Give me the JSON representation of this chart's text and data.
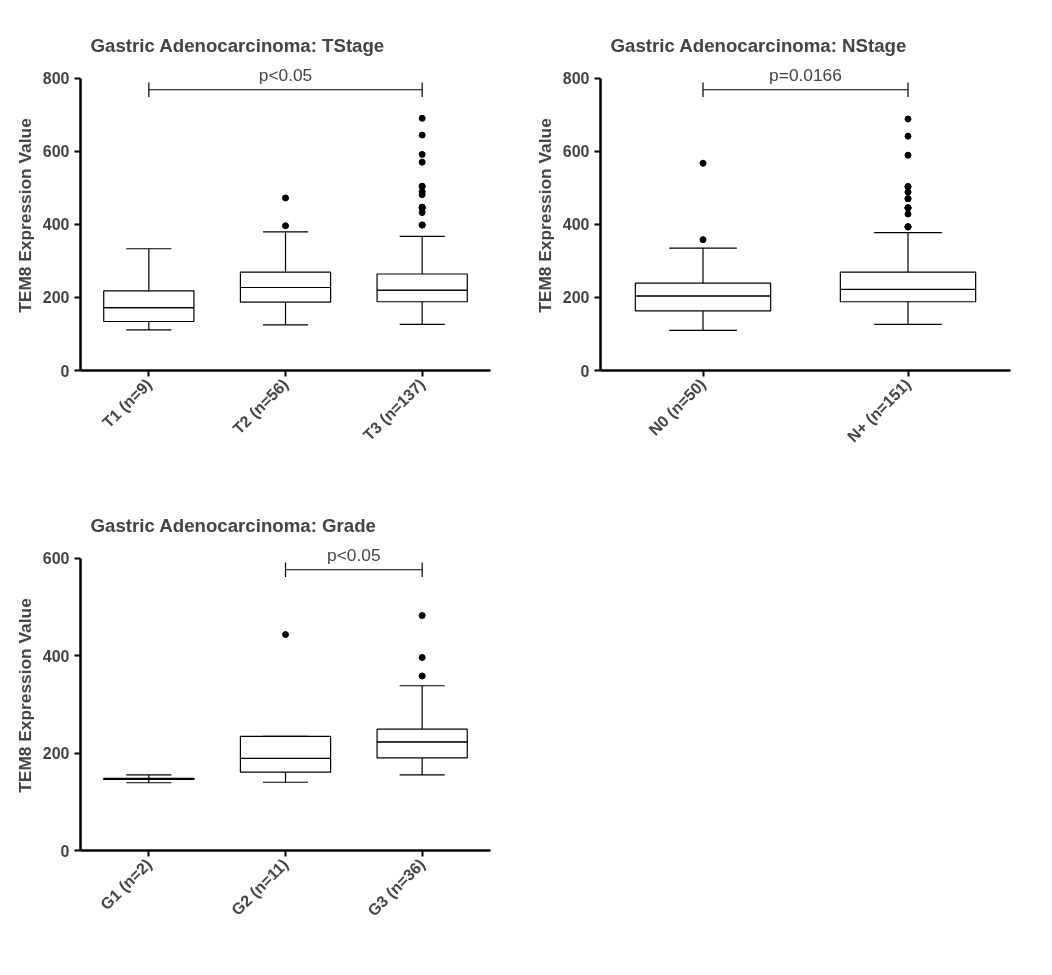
{
  "chart_data": [
    {
      "type": "box",
      "title": "Gastric Adenocarcinoma: TStage",
      "ylabel": "TEM8 Expression Value",
      "categories": [
        "T1 (n=9)",
        "T2 (n=56)",
        "T3 (n=137)"
      ],
      "boxes": [
        {
          "low": 111,
          "q1": 134,
          "median": 172,
          "q3": 218,
          "high": 333
        },
        {
          "low": 125,
          "q1": 187,
          "median": 227,
          "q3": 269,
          "high": 379,
          "outliers": [
            472,
            396
          ]
        },
        {
          "low": 126,
          "q1": 188,
          "median": 220,
          "q3": 264,
          "high": 367,
          "outliers": [
            690,
            644,
            591,
            570,
            504,
            504,
            489,
            481,
            447,
            446,
            444,
            432,
            398,
            398
          ]
        }
      ],
      "ylim": [
        0,
        800
      ],
      "yticks": [
        0,
        200,
        400,
        600,
        800
      ],
      "grid": false,
      "annotations": [
        "p<0.05"
      ]
    },
    {
      "type": "box",
      "title": "Gastric Adenocarcinoma: NStage",
      "ylabel": "TEM8 Expression Value",
      "categories": [
        "N0 (n=50)",
        "N+ (n=151)"
      ],
      "boxes": [
        {
          "low": 110,
          "q1": 163,
          "median": 204,
          "q3": 239,
          "high": 335,
          "outliers": [
            567,
            358
          ]
        },
        {
          "low": 126,
          "q1": 188,
          "median": 222,
          "q3": 269,
          "high": 377,
          "outliers": [
            688,
            641,
            589,
            503,
            503,
            488,
            470,
            470,
            445,
            445,
            445,
            428,
            393,
            393,
            393
          ]
        }
      ],
      "ylim": [
        0,
        800
      ],
      "yticks": [
        0,
        200,
        400,
        600,
        800
      ],
      "grid": false,
      "annotations": [
        "p=0.0166"
      ]
    },
    {
      "type": "box",
      "title": "Gastric Adenocarcinoma: Grade",
      "ylabel": "TEM8 Expression Value",
      "categories": [
        "G1 (n=2)",
        "G2 (n=11)",
        "G3 (n=36)"
      ],
      "boxes": [
        {
          "low": 139,
          "q1": 146,
          "median": 147,
          "q3": 148,
          "high": 155
        },
        {
          "low": 140,
          "q1": 161,
          "median": 189,
          "q3": 234,
          "high": 234,
          "outliers": [
            443
          ]
        },
        {
          "low": 155,
          "q1": 190,
          "median": 223,
          "q3": 249,
          "high": 338,
          "outliers": [
            482,
            396,
            358
          ]
        }
      ],
      "ylim": [
        0,
        600
      ],
      "yticks": [
        0,
        200,
        400,
        600
      ],
      "grid": false,
      "annotations": [
        "p<0.05"
      ]
    }
  ]
}
